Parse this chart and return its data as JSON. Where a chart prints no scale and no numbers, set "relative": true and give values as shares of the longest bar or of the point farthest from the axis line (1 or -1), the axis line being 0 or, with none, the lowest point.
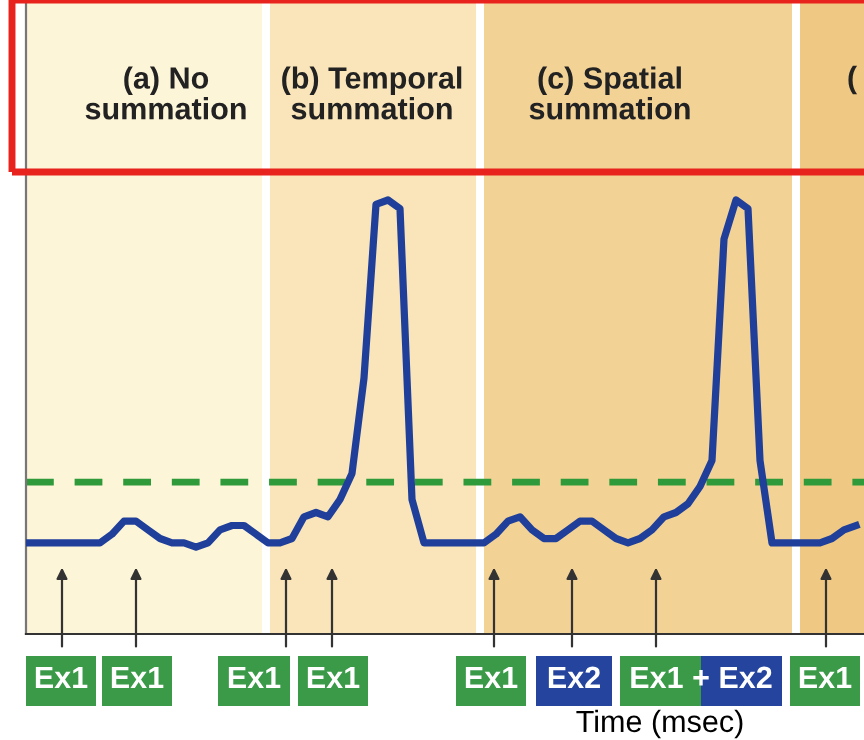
{
  "chart_data": {
    "type": "line",
    "relative": true,
    "xlabel": "Time (msec)",
    "categories": [
      null,
      null,
      null,
      null,
      null,
      null,
      null,
      null,
      null,
      null,
      null,
      null,
      null,
      null,
      null,
      null,
      null,
      null,
      null,
      null,
      null,
      null,
      null,
      null,
      null,
      null,
      null,
      null,
      null,
      null,
      null,
      null,
      null,
      null,
      null,
      null,
      null,
      null,
      null,
      null,
      null,
      null,
      null,
      null,
      null,
      null,
      null,
      null,
      null,
      null,
      null,
      null,
      null,
      null,
      null,
      null,
      null,
      null,
      null,
      null,
      null,
      null,
      null,
      null,
      null,
      null,
      null,
      null,
      null,
      null
    ],
    "series": [
      {
        "color": "#1f3f9a",
        "values": [
          0.21,
          0.21,
          0.21,
          0.21,
          0.21,
          0.21,
          0.21,
          0.23,
          0.26,
          0.26,
          0.24,
          0.22,
          0.21,
          0.21,
          0.2,
          0.21,
          0.24,
          0.25,
          0.25,
          0.23,
          0.21,
          0.21,
          0.22,
          0.27,
          0.28,
          0.27,
          0.31,
          0.37,
          0.59,
          0.99,
          1,
          0.98,
          0.31,
          0.21,
          0.21,
          0.21,
          0.21,
          0.21,
          0.21,
          0.23,
          0.26,
          0.27,
          0.24,
          0.22,
          0.22,
          0.24,
          0.26,
          0.26,
          0.24,
          0.22,
          0.21,
          0.22,
          0.24,
          0.27,
          0.28,
          0.3,
          0.34,
          0.4,
          0.91,
          1,
          0.98,
          0.4,
          0.21,
          0.21,
          0.21,
          0.21,
          0.21,
          0.22,
          0.24,
          0.25
        ]
      }
    ],
    "ref_lines": [
      {
        "axis": "y",
        "value": 0.35,
        "color": "#2e9a3a",
        "line_style": "dashed"
      }
    ],
    "annotations": [
      "(a) No\nsummation",
      "(b) Temporal\nsummation",
      "(c) Spatial\nsummation",
      "(",
      "Ex1",
      "Ex1",
      "Ex1",
      "Ex1",
      "Ex1",
      "Ex2",
      "Ex1 + Ex2",
      "Ex1"
    ],
    "marker": "none",
    "line_style": "solid"
  }
}
